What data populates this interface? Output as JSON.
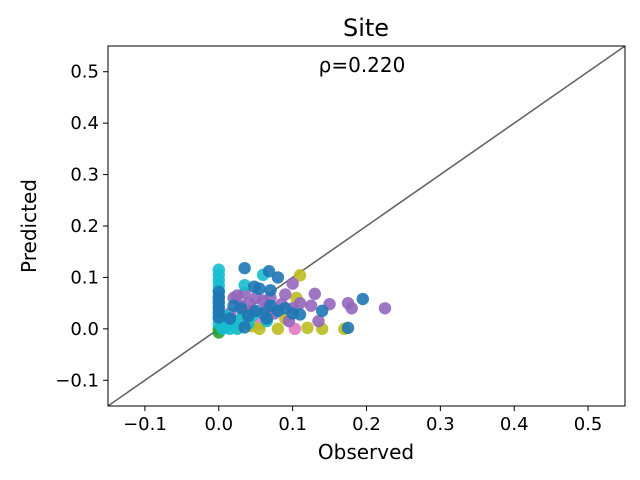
{
  "chart_data": {
    "type": "scatter",
    "title": "Site",
    "annotation": "ρ=0.220",
    "xlabel": "Observed",
    "ylabel": "Predicted",
    "xlim": [
      -0.15,
      0.55
    ],
    "ylim": [
      -0.15,
      0.55
    ],
    "xticks": [
      -0.1,
      0.0,
      0.1,
      0.2,
      0.3,
      0.4,
      0.5
    ],
    "yticks": [
      -0.1,
      0.0,
      0.1,
      0.2,
      0.3,
      0.4,
      0.5
    ],
    "xtick_labels": [
      "−0.1",
      "0.0",
      "0.1",
      "0.2",
      "0.3",
      "0.4",
      "0.5"
    ],
    "ytick_labels": [
      "−0.1",
      "0.0",
      "0.1",
      "0.2",
      "0.3",
      "0.4",
      "0.5"
    ],
    "grid": false,
    "legend": "none",
    "reference_line": {
      "from": [
        -0.15,
        -0.15
      ],
      "to": [
        0.55,
        0.55
      ],
      "color": "#666666"
    },
    "series": [
      {
        "color": "#2ca02c",
        "points": [
          [
            0.0,
            -0.007
          ],
          [
            0.0,
            0.0
          ],
          [
            0.005,
            0.003
          ]
        ]
      },
      {
        "color": "#e377c2",
        "points": [
          [
            0.103,
            0.0
          ],
          [
            0.055,
            0.01
          ],
          [
            0.03,
            0.015
          ]
        ]
      },
      {
        "color": "#bcbd22",
        "points": [
          [
            0.11,
            0.104
          ],
          [
            0.055,
            0.0
          ],
          [
            0.08,
            0.0
          ],
          [
            0.14,
            0.0
          ],
          [
            0.17,
            0.0
          ],
          [
            0.12,
            0.002
          ],
          [
            0.045,
            0.005
          ],
          [
            0.025,
            0.003
          ],
          [
            0.105,
            0.06
          ],
          [
            0.065,
            0.035
          ],
          [
            0.035,
            0.028
          ],
          [
            0.09,
            0.02
          ]
        ]
      },
      {
        "color": "#9467bd",
        "points": [
          [
            0.225,
            0.04
          ],
          [
            0.18,
            0.04
          ],
          [
            0.175,
            0.05
          ],
          [
            0.15,
            0.048
          ],
          [
            0.13,
            0.068
          ],
          [
            0.1,
            0.088
          ],
          [
            0.09,
            0.067
          ],
          [
            0.11,
            0.05
          ],
          [
            0.1,
            0.04
          ],
          [
            0.085,
            0.048
          ],
          [
            0.07,
            0.06
          ],
          [
            0.06,
            0.055
          ],
          [
            0.05,
            0.06
          ],
          [
            0.04,
            0.05
          ],
          [
            0.03,
            0.045
          ],
          [
            0.02,
            0.06
          ],
          [
            0.025,
            0.065
          ],
          [
            0.065,
            0.042
          ],
          [
            0.045,
            0.035
          ],
          [
            0.075,
            0.03
          ],
          [
            0.125,
            0.045
          ],
          [
            0.135,
            0.015
          ],
          [
            0.095,
            0.015
          ],
          [
            0.015,
            0.03
          ],
          [
            0.035,
            0.07
          ]
        ]
      },
      {
        "color": "#17becf",
        "points": [
          [
            0.0,
            0.115
          ],
          [
            0.0,
            0.105
          ],
          [
            0.0,
            0.095
          ],
          [
            0.0,
            0.085
          ],
          [
            0.0,
            0.075
          ],
          [
            0.0,
            0.06
          ],
          [
            0.0,
            0.05
          ],
          [
            0.0,
            0.04
          ],
          [
            0.0,
            0.03
          ],
          [
            0.0,
            0.02
          ],
          [
            0.0,
            0.01
          ],
          [
            0.005,
            0.0
          ],
          [
            0.01,
            0.005
          ],
          [
            0.015,
            0.0
          ],
          [
            0.02,
            0.01
          ],
          [
            0.025,
            0.0
          ],
          [
            0.035,
            0.085
          ],
          [
            0.06,
            0.105
          ],
          [
            0.03,
            0.02
          ],
          [
            0.01,
            0.025
          ],
          [
            0.045,
            0.025
          ],
          [
            0.065,
            0.015
          ],
          [
            0.04,
            0.01
          ]
        ]
      },
      {
        "color": "#1f77b4",
        "points": [
          [
            0.0,
            0.072
          ],
          [
            0.0,
            0.062
          ],
          [
            0.0,
            0.052
          ],
          [
            0.0,
            0.042
          ],
          [
            0.0,
            0.032
          ],
          [
            0.0,
            0.022
          ],
          [
            0.035,
            0.118
          ],
          [
            0.068,
            0.112
          ],
          [
            0.08,
            0.1
          ],
          [
            0.048,
            0.082
          ],
          [
            0.055,
            0.078
          ],
          [
            0.07,
            0.075
          ],
          [
            0.195,
            0.058
          ],
          [
            0.02,
            0.045
          ],
          [
            0.03,
            0.04
          ],
          [
            0.05,
            0.035
          ],
          [
            0.06,
            0.03
          ],
          [
            0.08,
            0.035
          ],
          [
            0.1,
            0.03
          ],
          [
            0.11,
            0.028
          ],
          [
            0.14,
            0.035
          ],
          [
            0.175,
            0.002
          ],
          [
            0.035,
            0.003
          ],
          [
            0.015,
            0.02
          ],
          [
            0.04,
            0.025
          ],
          [
            0.065,
            0.02
          ],
          [
            0.09,
            0.04
          ],
          [
            0.07,
            0.045
          ]
        ]
      }
    ]
  }
}
